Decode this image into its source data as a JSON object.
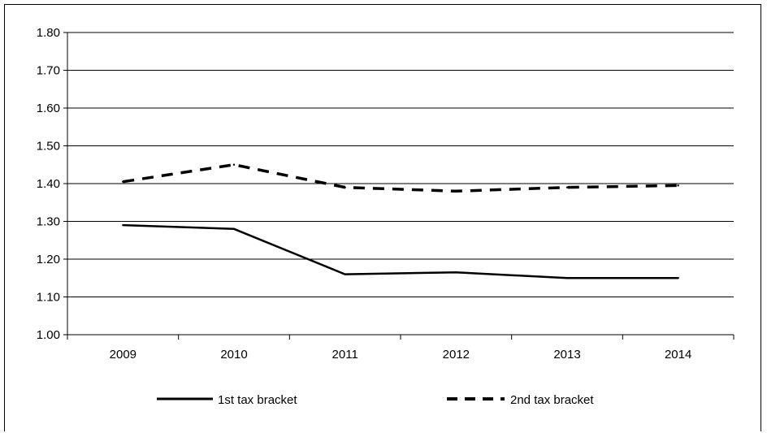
{
  "chart_data": {
    "type": "line",
    "categories": [
      "2009",
      "2010",
      "2011",
      "2012",
      "2013",
      "2014"
    ],
    "ylim": [
      1.0,
      1.8
    ],
    "yticks": [
      "1.00",
      "1.10",
      "1.20",
      "1.30",
      "1.40",
      "1.50",
      "1.60",
      "1.70",
      "1.80"
    ],
    "grid": true,
    "legend_position": "bottom",
    "series": [
      {
        "name": "1st tax bracket",
        "values": [
          1.29,
          1.28,
          1.16,
          1.165,
          1.15,
          1.15
        ],
        "style": "solid",
        "color": "#000000"
      },
      {
        "name": "2nd tax bracket",
        "values": [
          1.405,
          1.45,
          1.39,
          1.38,
          1.39,
          1.395
        ],
        "style": "dashed",
        "color": "#000000"
      }
    ]
  }
}
